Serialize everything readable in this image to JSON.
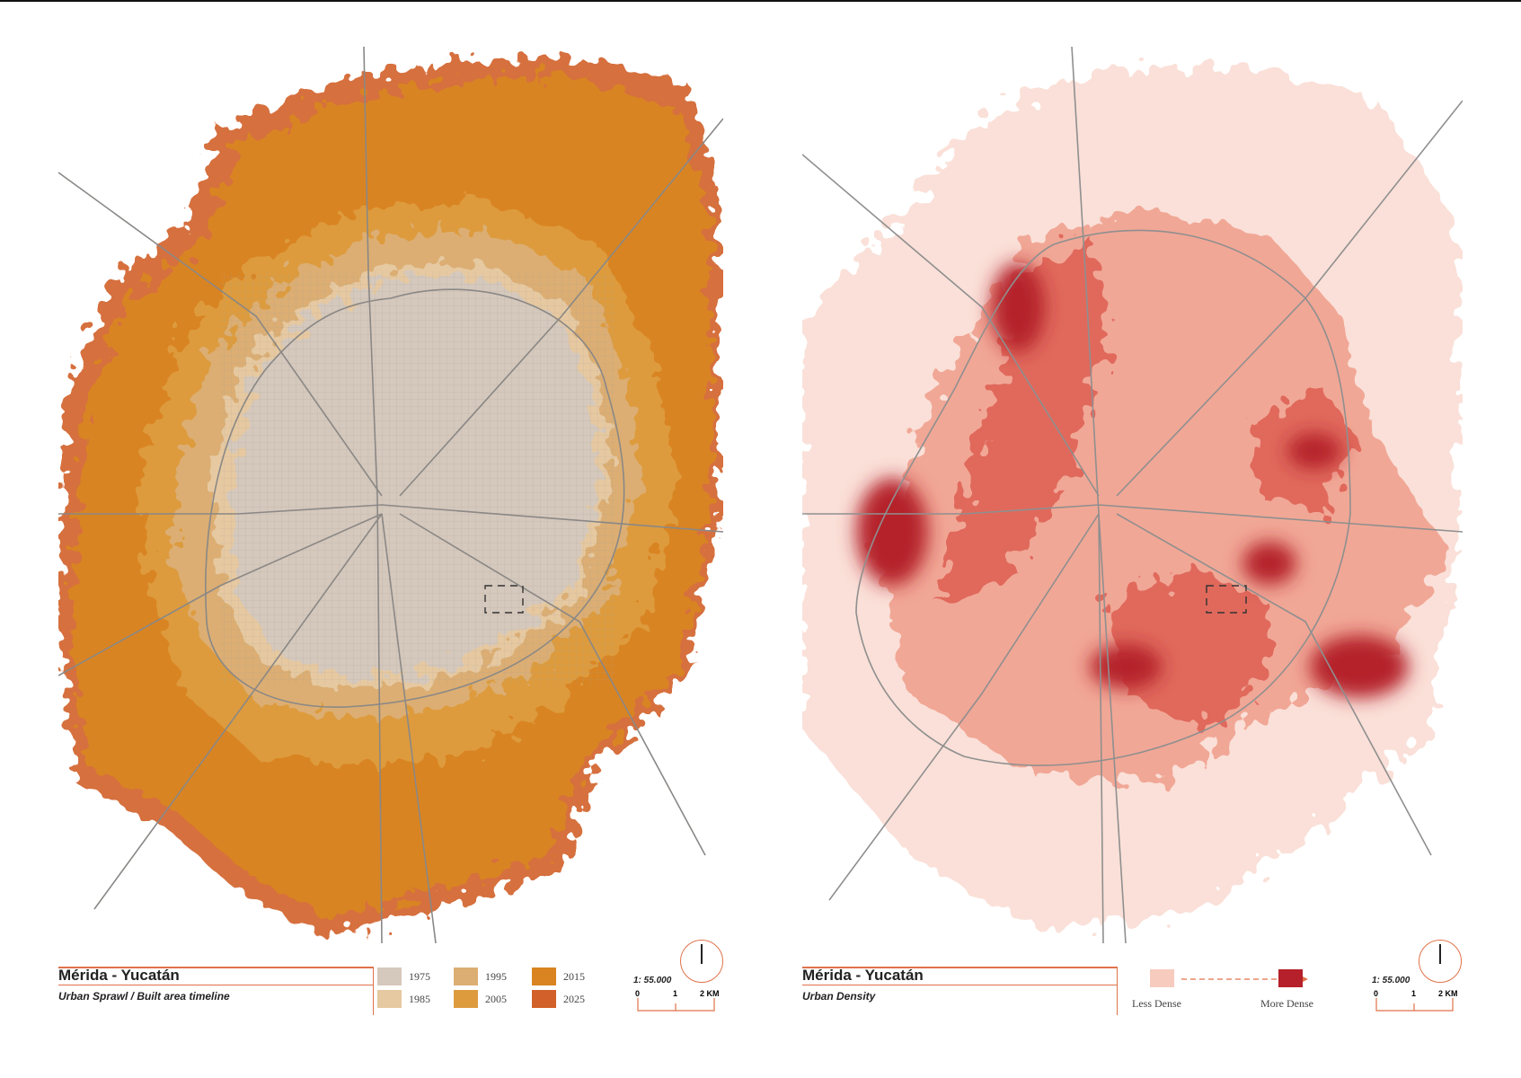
{
  "maps": [
    {
      "title": "Mérida - Yucatán",
      "subtitle": "Urban Sprawl / Built area timeline",
      "scale": "1: 55.000",
      "scale_ticks": [
        "0",
        "1",
        "2 KM"
      ],
      "legend": [
        {
          "label": "1975",
          "color": "#d5c8bc"
        },
        {
          "label": "1985",
          "color": "#e6c9a1"
        },
        {
          "label": "1995",
          "color": "#dcae73"
        },
        {
          "label": "2005",
          "color": "#dd9b3e"
        },
        {
          "label": "2015",
          "color": "#d98420"
        },
        {
          "label": "2025",
          "color": "#d2602a"
        }
      ]
    },
    {
      "title": "Mérida - Yucatán",
      "subtitle": "Urban Density",
      "scale": "1: 55.000",
      "scale_ticks": [
        "0",
        "1",
        "2 KM"
      ],
      "legend_low": "Less Dense",
      "legend_high": "More Dense",
      "color_low": "#f7cbbe",
      "color_high": "#b5202a"
    }
  ]
}
